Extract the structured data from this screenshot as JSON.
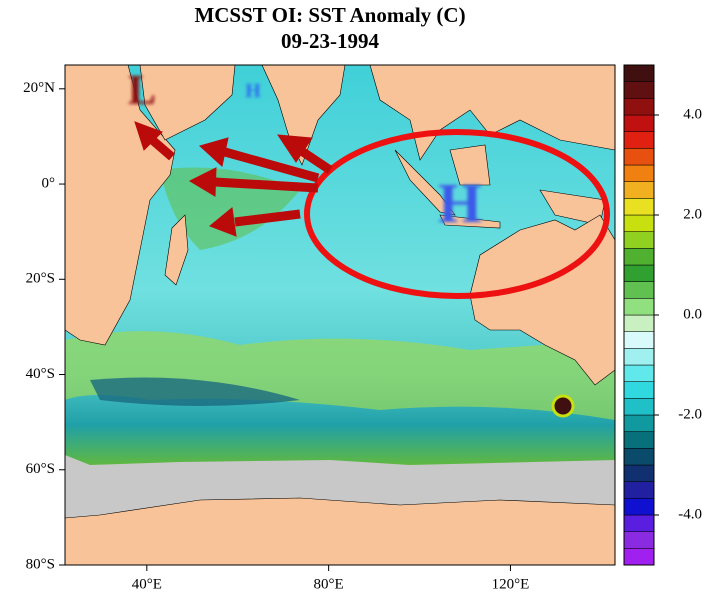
{
  "map": {
    "title": "MCSST OI:  SST Anomaly (C)",
    "subtitle": "09-23-1994",
    "lat_range": [
      -80,
      25
    ],
    "lon_range": [
      22,
      143
    ],
    "lat_ticks": [
      {
        "value": 20,
        "label": "20°N"
      },
      {
        "value": 0,
        "label": "0°"
      },
      {
        "value": -20,
        "label": "20°S"
      },
      {
        "value": -40,
        "label": "40°S"
      },
      {
        "value": -60,
        "label": "60°S"
      },
      {
        "value": -80,
        "label": "80°S"
      }
    ],
    "lon_ticks": [
      {
        "value": 40,
        "label": "40°E"
      },
      {
        "value": 80,
        "label": "80°E"
      },
      {
        "value": 120,
        "label": "120°E"
      }
    ],
    "colorbar": {
      "range": [
        -5,
        5
      ],
      "ticks": [
        {
          "value": 4,
          "label": "4.0"
        },
        {
          "value": 2,
          "label": "2.0"
        },
        {
          "value": 0,
          "label": "0.0"
        },
        {
          "value": -2,
          "label": "-2.0"
        },
        {
          "value": -4,
          "label": "-4.0"
        }
      ],
      "colors": [
        "#a020f0",
        "#8a2be2",
        "#5a1ee0",
        "#1010d0",
        "#2020a0",
        "#103070",
        "#0a4a6a",
        "#08707a",
        "#109aa0",
        "#20c0c8",
        "#30d8e0",
        "#60e8ea",
        "#a0f0f0",
        "#d8fafa",
        "#c8f0c0",
        "#90e080",
        "#60c050",
        "#30a030",
        "#50b030",
        "#90d020",
        "#c8e010",
        "#e8e020",
        "#f0b020",
        "#f08010",
        "#e85010",
        "#e02010",
        "#c01010",
        "#901010",
        "#601010",
        "#401010"
      ]
    },
    "annotations": {
      "low": "L",
      "high_small": "H",
      "high_large": "H"
    }
  }
}
